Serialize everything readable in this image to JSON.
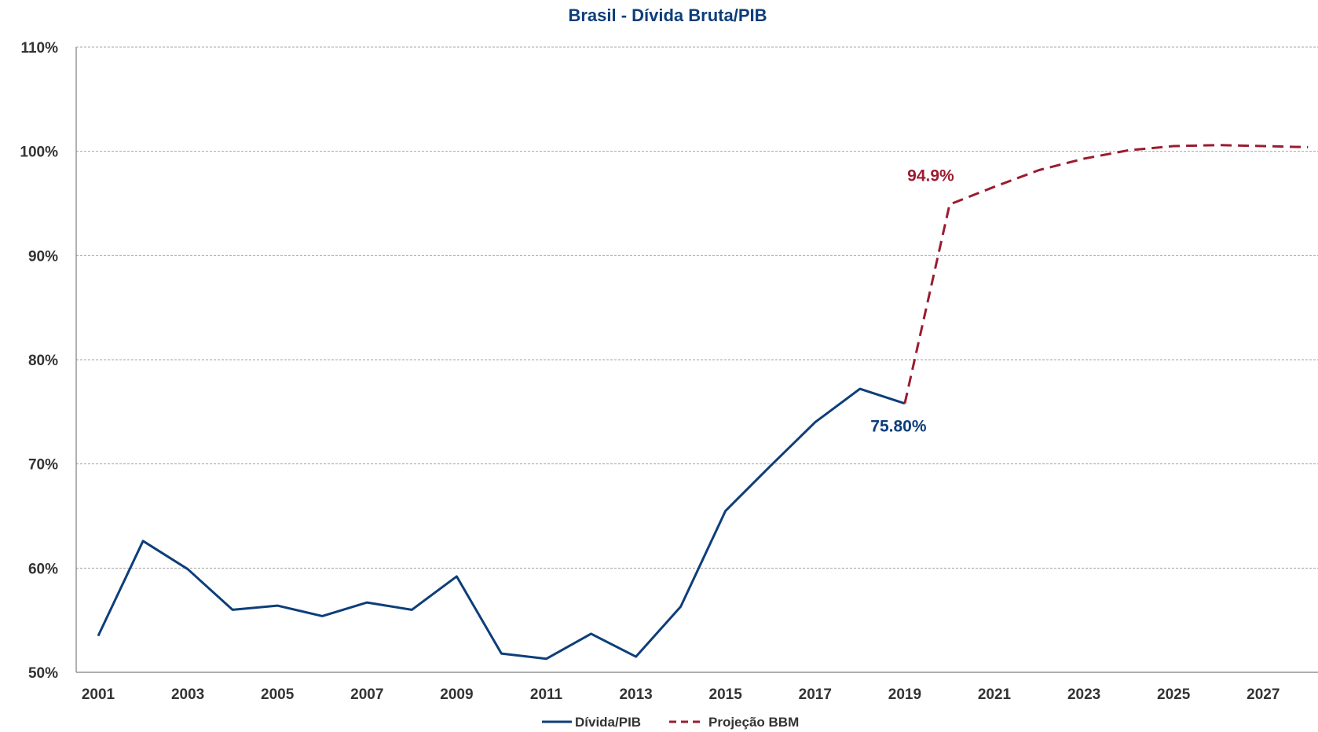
{
  "chart_data": {
    "type": "line",
    "title": "Brasil - Dívida Bruta/PIB",
    "xlabel": "",
    "ylabel": "",
    "ylim": [
      50,
      110
    ],
    "y_ticks": [
      50,
      60,
      70,
      80,
      90,
      100,
      110
    ],
    "y_tick_labels": [
      "50%",
      "60%",
      "70%",
      "80%",
      "90%",
      "100%",
      "110%"
    ],
    "x_tick_labels": [
      "2001",
      "2003",
      "2005",
      "2007",
      "2009",
      "2011",
      "2013",
      "2015",
      "2017",
      "2019",
      "2021",
      "2023",
      "2025",
      "2027"
    ],
    "xlim": [
      2001,
      2028
    ],
    "grid": true,
    "legend_position": "bottom",
    "series": [
      {
        "name": "Dívida/PIB",
        "color": "#0d3e7a",
        "style": "solid",
        "x": [
          2001,
          2002,
          2003,
          2004,
          2005,
          2006,
          2007,
          2008,
          2009,
          2010,
          2011,
          2012,
          2013,
          2014,
          2015,
          2016,
          2017,
          2018,
          2019
        ],
        "values": [
          53.5,
          62.6,
          59.9,
          56.0,
          56.4,
          55.4,
          56.7,
          56.0,
          59.2,
          51.8,
          51.3,
          53.7,
          51.5,
          56.3,
          65.5,
          69.8,
          74.0,
          77.2,
          75.8
        ]
      },
      {
        "name": "Projeção BBM",
        "color": "#9b1b30",
        "style": "dashed",
        "x": [
          2019,
          2020,
          2021,
          2022,
          2023,
          2024,
          2025,
          2026,
          2027,
          2028
        ],
        "values": [
          75.8,
          94.9,
          96.6,
          98.2,
          99.3,
          100.1,
          100.5,
          100.6,
          100.5,
          100.4
        ]
      }
    ],
    "annotations": [
      {
        "text": "94.9%",
        "x": 2020,
        "y": 94.9,
        "color": "#9b1b30"
      },
      {
        "text": "75.80%",
        "x": 2019,
        "y": 75.8,
        "color": "#0d3e7a"
      }
    ]
  }
}
